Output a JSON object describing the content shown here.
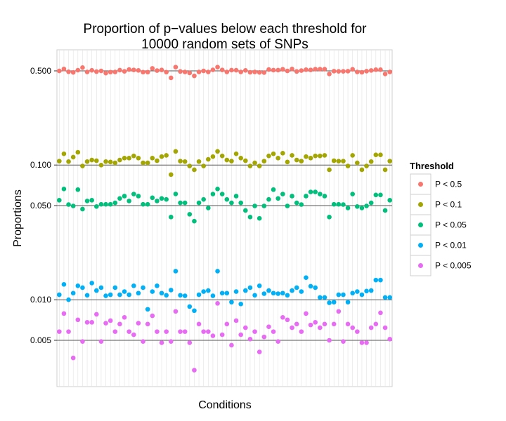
{
  "chart_data": {
    "type": "scatter",
    "title": [
      "Proportion of p−values below each threshold for",
      "10000 random sets of SNPs"
    ],
    "xlabel": "Conditions",
    "ylabel": "Proportions",
    "y_scale": "log10",
    "ylim": [
      0.0022,
      0.8
    ],
    "y_ticks": [
      0.005,
      0.01,
      0.05,
      0.1,
      0.5
    ],
    "y_tick_labels": [
      "0.005",
      "0.010",
      "0.050",
      "0.100",
      "0.500"
    ],
    "x_count": 72,
    "legend": {
      "title": "Threshold",
      "position": "right",
      "entries": [
        "P < 0.5",
        "P < 0.1",
        "P < 0.05",
        "P < 0.01",
        "P < 0.005"
      ]
    },
    "series": [
      {
        "name": "P < 0.5",
        "color": "#F8766D",
        "values": [
          0.4998,
          0.5168,
          0.4923,
          0.487,
          0.506,
          0.5288,
          0.4909,
          0.5051,
          0.4934,
          0.4998,
          0.4812,
          0.4896,
          0.4909,
          0.5062,
          0.4958,
          0.5115,
          0.5082,
          0.5041,
          0.4896,
          0.4896,
          0.5217,
          0.5024,
          0.5078,
          0.4896,
          0.444,
          0.5332,
          0.4949,
          0.4909,
          0.4826,
          0.4591,
          0.4909,
          0.4998,
          0.4909,
          0.5089,
          0.5332,
          0.5082,
          0.4909,
          0.5062,
          0.5055,
          0.4909,
          0.5041,
          0.4882,
          0.4909,
          0.487,
          0.4856,
          0.5115,
          0.5062,
          0.5062,
          0.5138,
          0.4998,
          0.5162,
          0.4949,
          0.5024,
          0.51,
          0.5082,
          0.5148,
          0.5148,
          0.5148,
          0.4741,
          0.4973,
          0.4958,
          0.4958,
          0.4973,
          0.5138,
          0.4909,
          0.4882,
          0.4973,
          0.5038,
          0.51,
          0.51,
          0.4741,
          0.4909
        ]
      },
      {
        "name": "P < 0.1",
        "color": "#A3A500",
        "values": [
          0.1069,
          0.1212,
          0.1061,
          0.1145,
          0.1244,
          0.0984,
          0.1061,
          0.109,
          0.1077,
          0.0999,
          0.1061,
          0.1054,
          0.1039,
          0.109,
          0.1126,
          0.1126,
          0.1169,
          0.1126,
          0.1038,
          0.1038,
          0.1126,
          0.1077,
          0.1155,
          0.118,
          0.0849,
          0.1263,
          0.1069,
          0.1061,
          0.0984,
          0.0922,
          0.1061,
          0.0984,
          0.1103,
          0.1155,
          0.1263,
          0.1169,
          0.109,
          0.1069,
          0.1212,
          0.1126,
          0.1076,
          0.0984,
          0.1038,
          0.0984,
          0.1069,
          0.1169,
          0.1212,
          0.1126,
          0.1224,
          0.1054,
          0.118,
          0.109,
          0.1069,
          0.1155,
          0.1126,
          0.1169,
          0.1169,
          0.118,
          0.0922,
          0.1077,
          0.1069,
          0.1069,
          0.0984,
          0.118,
          0.1038,
          0.0922,
          0.0984,
          0.1061,
          0.119,
          0.119,
          0.0922,
          0.1069
        ]
      },
      {
        "name": "P < 0.05",
        "color": "#00BF7D",
        "values": [
          0.0548,
          0.0664,
          0.0509,
          0.0497,
          0.0657,
          0.0471,
          0.0541,
          0.0548,
          0.0492,
          0.0511,
          0.0511,
          0.0511,
          0.0524,
          0.0565,
          0.0588,
          0.0541,
          0.0609,
          0.0588,
          0.0511,
          0.0511,
          0.0572,
          0.0541,
          0.0565,
          0.0556,
          0.0411,
          0.061,
          0.0524,
          0.0524,
          0.0431,
          0.0383,
          0.0524,
          0.0556,
          0.048,
          0.0609,
          0.0664,
          0.0609,
          0.0556,
          0.0524,
          0.0588,
          0.0524,
          0.046,
          0.0411,
          0.0497,
          0.0402,
          0.0497,
          0.0556,
          0.0657,
          0.0565,
          0.0609,
          0.0497,
          0.0588,
          0.0524,
          0.0509,
          0.0588,
          0.0631,
          0.0631,
          0.0609,
          0.0588,
          0.0411,
          0.0511,
          0.0511,
          0.0509,
          0.048,
          0.0609,
          0.0492,
          0.048,
          0.0497,
          0.0524,
          0.06,
          0.06,
          0.046,
          0.0548
        ]
      },
      {
        "name": "P < 0.01",
        "color": "#00B0F6",
        "values": [
          0.0109,
          0.013,
          0.01,
          0.0112,
          0.0127,
          0.0123,
          0.0108,
          0.0133,
          0.0117,
          0.0123,
          0.0107,
          0.0109,
          0.0123,
          0.0109,
          0.0115,
          0.0109,
          0.0127,
          0.0112,
          0.0123,
          0.0085,
          0.0115,
          0.0127,
          0.0112,
          0.0108,
          0.0118,
          0.0163,
          0.0108,
          0.0107,
          0.0089,
          0.0083,
          0.0109,
          0.0115,
          0.0117,
          0.0107,
          0.0163,
          0.0112,
          0.0112,
          0.0096,
          0.0115,
          0.0093,
          0.0117,
          0.0123,
          0.0108,
          0.0127,
          0.0111,
          0.0117,
          0.0112,
          0.0111,
          0.0112,
          0.0108,
          0.0117,
          0.0123,
          0.0115,
          0.0146,
          0.0126,
          0.0123,
          0.0104,
          0.0104,
          0.0095,
          0.0096,
          0.0109,
          0.0109,
          0.0096,
          0.0112,
          0.0115,
          0.0109,
          0.0116,
          0.0117,
          0.014,
          0.014,
          0.0104,
          0.0104
        ]
      },
      {
        "name": "P < 0.005",
        "color": "#E76BF3",
        "values": [
          0.0058,
          0.0079,
          0.0058,
          0.0037,
          0.0071,
          0.0049,
          0.0068,
          0.0068,
          0.0078,
          0.0049,
          0.0067,
          0.007,
          0.0058,
          0.0066,
          0.0074,
          0.0058,
          0.0055,
          0.0067,
          0.0049,
          0.0066,
          0.0076,
          0.0058,
          0.0048,
          0.0058,
          0.0049,
          0.0082,
          0.0058,
          0.0058,
          0.0048,
          0.003,
          0.0066,
          0.0058,
          0.0058,
          0.0054,
          0.0094,
          0.0055,
          0.0066,
          0.0046,
          0.007,
          0.0055,
          0.0062,
          0.0051,
          0.0058,
          0.0041,
          0.0053,
          0.0063,
          0.0058,
          0.0049,
          0.0074,
          0.0071,
          0.0062,
          0.0066,
          0.0058,
          0.0079,
          0.0065,
          0.0068,
          0.0062,
          0.0066,
          0.005,
          0.0066,
          0.0082,
          0.0049,
          0.0066,
          0.0062,
          0.0058,
          0.0048,
          0.0048,
          0.0062,
          0.0066,
          0.008,
          0.0062,
          0.0051
        ]
      }
    ]
  }
}
